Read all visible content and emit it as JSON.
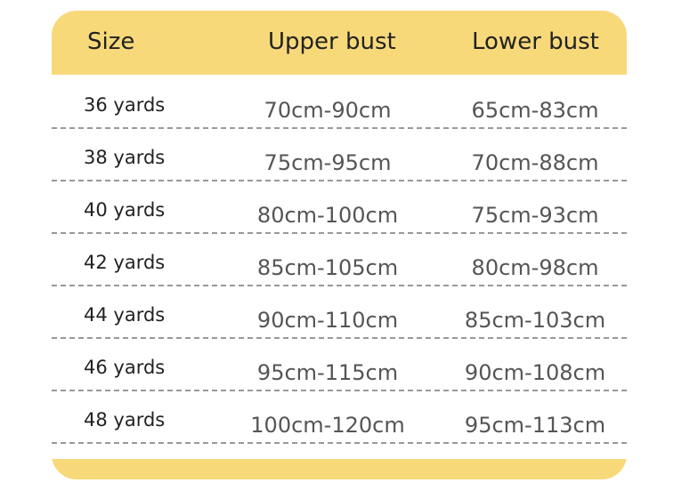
{
  "table": {
    "header": [
      "Size",
      "Upper bust",
      "Lower bust"
    ],
    "rows": [
      [
        "36 yards",
        "70cm-90cm",
        "65cm-83cm"
      ],
      [
        "38 yards",
        "75cm-95cm",
        "70cm-88cm"
      ],
      [
        "40 yards",
        "80cm-100cm",
        "75cm-93cm"
      ],
      [
        "42 yards",
        "85cm-105cm",
        "80cm-98cm"
      ],
      [
        "44 yards",
        "90cm-110cm",
        "85cm-103cm"
      ],
      [
        "46 yards",
        "95cm-115cm",
        "90cm-108cm"
      ],
      [
        "48 yards",
        "100cm-120cm",
        "95cm-113cm"
      ]
    ]
  }
}
